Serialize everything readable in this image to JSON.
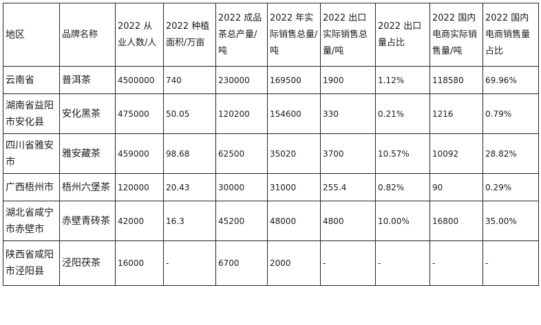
{
  "table": {
    "headers": [
      "地区",
      "品牌名称",
      "2022 从业人数/人",
      "2022 种植面积/万亩",
      "2022 成品茶总产量/吨",
      "2022 年实际销售总量/吨",
      "2022 出口实际销售总量/吨",
      "2022 出口量占比",
      "2022 国内电商实际销售量/吨",
      "2022 国内电商销售量占比"
    ],
    "rows": [
      [
        "云南省",
        "普洱茶",
        "4500000",
        "740",
        "230000",
        "169500",
        "1900",
        "1.12%",
        "118580",
        "69.96%"
      ],
      [
        "湖南省益阳市安化县",
        "安化黑茶",
        "475000",
        "50.05",
        "120200",
        "154600",
        "330",
        "0.21%",
        "1216",
        "0.79%"
      ],
      [
        "四川省雅安市",
        "雅安藏茶",
        "459000",
        "98.68",
        "62500",
        "35020",
        "3700",
        "10.57%",
        "10092",
        "28.82%"
      ],
      [
        "广西梧州市",
        "梧州六堡茶",
        "120000",
        "20.43",
        "30000",
        "31000",
        "255.4",
        "0.82%",
        "90",
        "0.29%"
      ],
      [
        "湖北省咸宁市赤壁市",
        "赤壁青砖茶",
        "42000",
        "16.3",
        "45200",
        "48000",
        "4800",
        "10.00%",
        "16800",
        "35.00%"
      ],
      [
        "陕西省咸阳市泾阳县",
        "泾阳茯茶",
        "16000",
        "-",
        "6700",
        "2000",
        "-",
        "-",
        "-",
        "-"
      ]
    ]
  }
}
